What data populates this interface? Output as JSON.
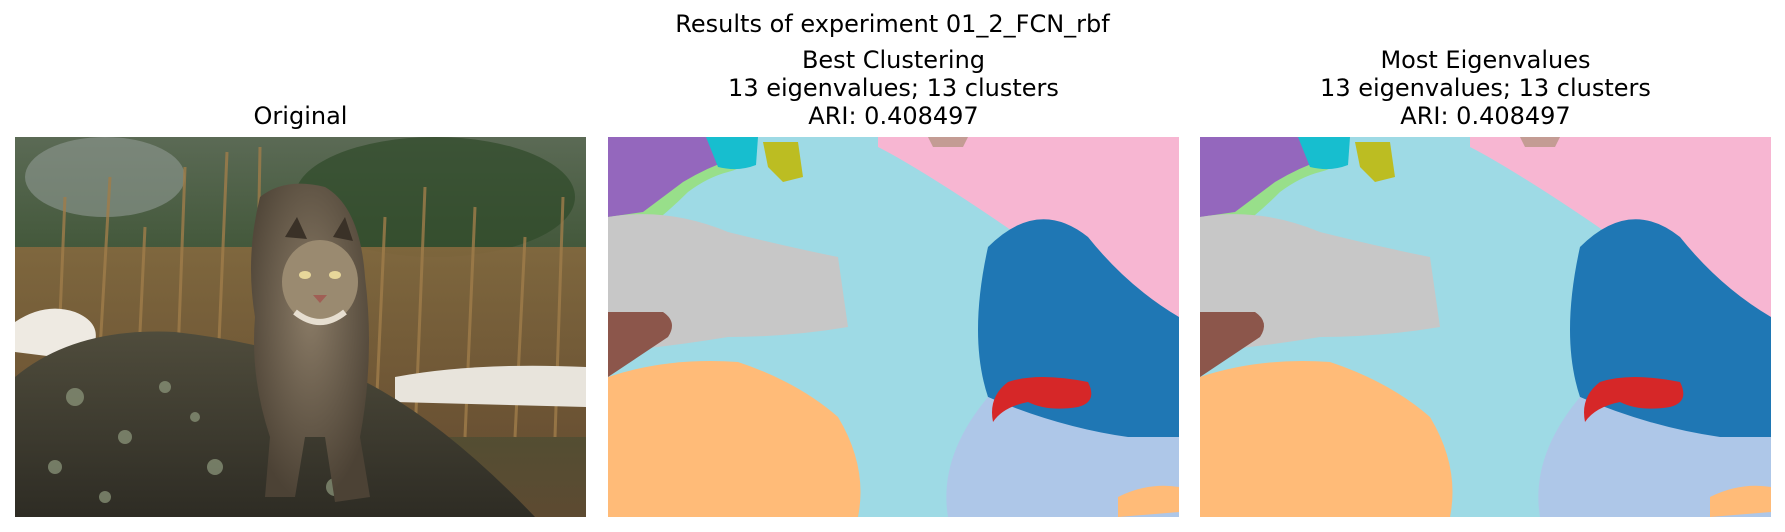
{
  "figure": {
    "suptitle": "Results of experiment 01_2_FCN_rbf",
    "panels": [
      {
        "title_lines": [
          "Original"
        ]
      },
      {
        "title_lines": [
          "Best Clustering",
          "13 eigenvalues; 13 clusters",
          "ARI: 0.408497"
        ]
      },
      {
        "title_lines": [
          "Most Eigenvalues",
          "13 eigenvalues; 13 clusters",
          "ARI: 0.408497"
        ]
      }
    ],
    "photo_subject": "bobcat on mossy rock",
    "cluster_colors": {
      "blue": "#1f77b4",
      "light_blue": "#aec7e8",
      "orange_light": "#ffbb78",
      "green_light": "#98df8a",
      "red": "#d62728",
      "purple": "#9467bd",
      "brown": "#8c564b",
      "pink": "#f7b6d2",
      "gray": "#c7c7c7",
      "olive": "#bcbd22",
      "cyan": "#17becf",
      "cyan_light": "#9edae5",
      "salmon": "#c49c94"
    }
  }
}
